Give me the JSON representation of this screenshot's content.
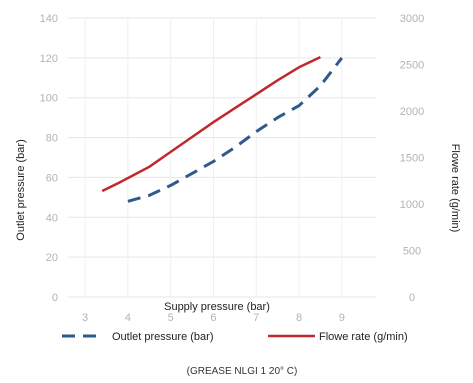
{
  "chart_data": {
    "type": "line",
    "xlabel": "Supply pressure (bar)",
    "ylabel_left": "Outlet pressure (bar)",
    "ylabel_right": "Flowe rate (g/min)",
    "caption": "(GREASE NLGI 1 20° C)",
    "x_ticks": [
      "3",
      "4",
      "5",
      "6",
      "7",
      "8",
      "9"
    ],
    "y_left_ticks": [
      "0",
      "20",
      "40",
      "60",
      "80",
      "100",
      "120",
      "140"
    ],
    "y_right_ticks": [
      "0",
      "500",
      "1000",
      "1500",
      "2000",
      "2500",
      "3000"
    ],
    "xlim": [
      2.6,
      9.8
    ],
    "ylim_left": [
      0,
      140
    ],
    "ylim_right": [
      0,
      3000
    ],
    "grid": true,
    "legend_position": "bottom",
    "series": [
      {
        "name": "Outlet pressure (bar)",
        "axis": "left",
        "style": "dashed",
        "color": "#2e5a8c",
        "x": [
          4.0,
          4.5,
          5.0,
          5.5,
          6.0,
          6.5,
          7.0,
          7.5,
          8.0,
          8.5,
          9.0
        ],
        "y": [
          48,
          51,
          56,
          62,
          68,
          75,
          83,
          90,
          96,
          106,
          120
        ]
      },
      {
        "name": "Flowe rate (g/min)",
        "axis": "right",
        "style": "solid",
        "color": "#c0282d",
        "x": [
          3.4,
          3.8,
          4.5,
          5.0,
          5.5,
          6.0,
          6.5,
          7.0,
          7.5,
          8.0,
          8.5
        ],
        "y": [
          1140,
          1230,
          1400,
          1560,
          1720,
          1880,
          2030,
          2180,
          2330,
          2470,
          2580
        ]
      }
    ]
  }
}
